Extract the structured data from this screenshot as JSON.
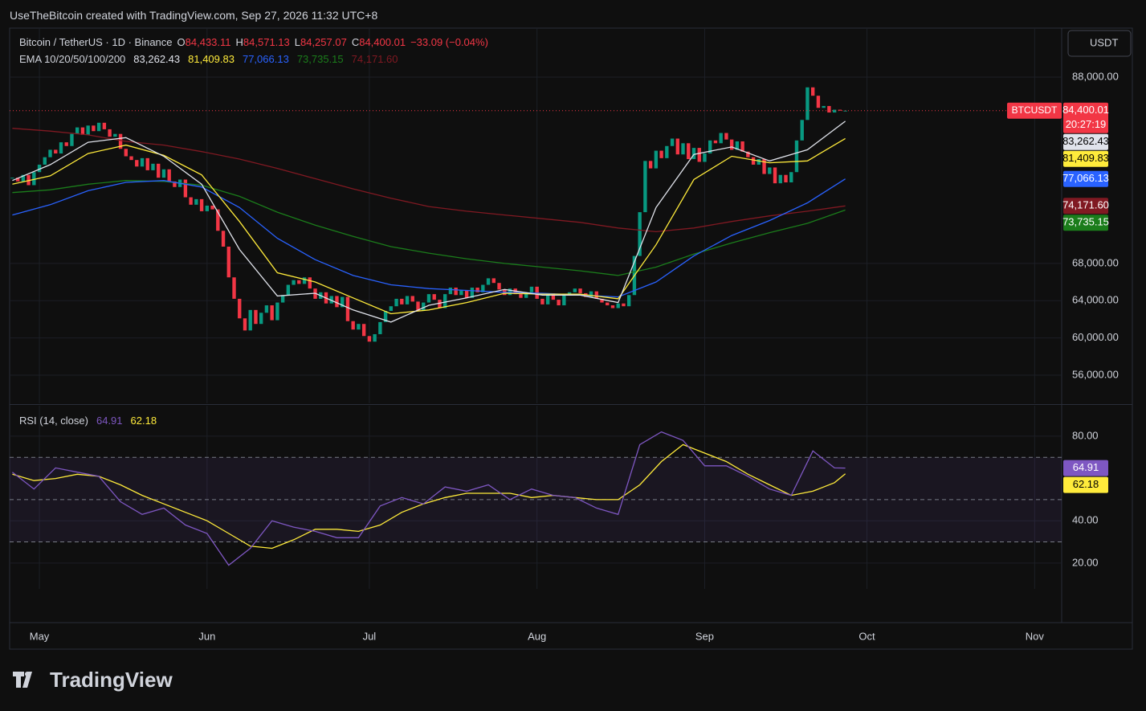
{
  "header": "UseTheBitcoin created with TradingView.com, Sep 27, 2026 11:32 UTC+8",
  "currency": "USDT",
  "watermark": "TradingView",
  "chart_data": [
    {
      "type": "candlestick",
      "title": "Bitcoin / TetherUS · 1D · Binance",
      "ohlc": [
        {
          "key": "O",
          "label": "84,433.11"
        },
        {
          "key": "H",
          "label": "84,571.13"
        },
        {
          "key": "L",
          "label": "84,257.07"
        },
        {
          "key": "C",
          "label": "84,400.01"
        }
      ],
      "change": "−33.09 (−0.04%)",
      "symbol": "BTCUSDT",
      "last_label": "84,400.01",
      "countdown": "20:27:19",
      "up_color": "#089981",
      "down_color": "#f23645",
      "values": [
        77200,
        76800,
        77500,
        76400,
        77800,
        78600,
        79400,
        80200,
        79800,
        81000,
        80600,
        81900,
        82600,
        81800,
        82800,
        82200,
        83100,
        82400,
        81600,
        81900,
        80300,
        79500,
        79100,
        78400,
        79300,
        78000,
        78700,
        77200,
        78100,
        76800,
        76200,
        77000,
        75100,
        74300,
        74900,
        73600,
        74200,
        73800,
        71500,
        69800,
        66500,
        64200,
        62100,
        60800,
        63000,
        61500,
        62700,
        63500,
        61900,
        63800,
        64600,
        65700,
        66200,
        65800,
        66500,
        65300,
        64200,
        64900,
        63700,
        64500,
        63300,
        64400,
        61800,
        60900,
        61500,
        60200,
        59600,
        60400,
        61700,
        62900,
        63400,
        64200,
        63600,
        64500,
        63900,
        62900,
        63800,
        64700,
        64100,
        63200,
        64700,
        65400,
        64600,
        65100,
        64300,
        65400,
        64900,
        65700,
        66400,
        65900,
        65200,
        64600,
        65300,
        64700,
        64300,
        64900,
        65500,
        64200,
        63600,
        64800,
        64100,
        63500,
        64600,
        64900,
        65300,
        64800,
        64400,
        65000,
        64200,
        63800,
        63500,
        63200,
        63700,
        63400,
        64600,
        68800,
        73500,
        79000,
        78200,
        80100,
        79300,
        80600,
        81400,
        79700,
        80900,
        79200,
        80400,
        78900,
        79800,
        81200,
        80900,
        82000,
        81300,
        80200,
        81100,
        80000,
        79400,
        78600,
        79200,
        77600,
        78300,
        76600,
        77500,
        76700,
        77800,
        81200,
        83400,
        86900,
        86000,
        84700,
        84900,
        84200,
        84500,
        84400,
        84400.01
      ],
      "indicator": "EMA 10/20/50/100/200",
      "emas": [
        {
          "color": "#e0e3eb",
          "text_color": "#000000",
          "label": "83,262.43",
          "x": [
            0,
            7,
            14,
            21,
            28,
            35,
            42,
            49,
            56,
            63,
            70,
            77,
            84,
            91,
            98,
            105,
            112,
            119,
            126,
            133,
            140,
            147,
            154
          ],
          "values": [
            76900,
            78600,
            81000,
            81500,
            79500,
            76500,
            69500,
            64500,
            64800,
            63000,
            61700,
            63500,
            64300,
            65200,
            64600,
            64600,
            63800,
            74000,
            79700,
            80500,
            79000,
            80200,
            83262.43
          ]
        },
        {
          "color": "#ffeb3b",
          "text_color": "#000000",
          "label": "81,409.83",
          "x": [
            0,
            7,
            14,
            21,
            28,
            35,
            42,
            49,
            56,
            63,
            70,
            77,
            84,
            91,
            98,
            105,
            112,
            119,
            126,
            133,
            140,
            147,
            154
          ],
          "values": [
            76500,
            77400,
            79800,
            80700,
            79600,
            77500,
            72500,
            67000,
            66000,
            64300,
            62600,
            63000,
            63800,
            64800,
            64700,
            64700,
            64200,
            70000,
            77000,
            79500,
            78800,
            79000,
            81409.83
          ]
        },
        {
          "color": "#2962ff",
          "text_color": "#ffffff",
          "label": "77,066.13",
          "x": [
            0,
            7,
            14,
            21,
            28,
            35,
            42,
            49,
            56,
            63,
            70,
            77,
            84,
            91,
            98,
            105,
            112,
            119,
            126,
            133,
            140,
            147,
            154
          ],
          "values": [
            73200,
            74300,
            75800,
            76700,
            76900,
            76200,
            74000,
            70700,
            68400,
            66700,
            65700,
            65300,
            65100,
            64900,
            64800,
            64600,
            64400,
            66000,
            68800,
            71000,
            72600,
            74500,
            77066.13
          ]
        },
        {
          "color": "#1b7d1b",
          "text_color": "#ffffff",
          "label": "73,735.15",
          "x": [
            0,
            7,
            14,
            21,
            28,
            35,
            42,
            49,
            56,
            63,
            70,
            77,
            84,
            91,
            98,
            105,
            112,
            119,
            126,
            133,
            140,
            147,
            154
          ],
          "values": [
            75600,
            75900,
            76500,
            76900,
            76800,
            76400,
            75200,
            73500,
            72100,
            70900,
            69800,
            69100,
            68500,
            68000,
            67600,
            67200,
            66700,
            67600,
            69000,
            70200,
            71300,
            72300,
            73735.15
          ]
        },
        {
          "color": "#801922",
          "text_color": "#ffffff",
          "label": "74,171.60",
          "x": [
            0,
            7,
            14,
            21,
            28,
            35,
            42,
            49,
            56,
            63,
            70,
            77,
            84,
            91,
            98,
            105,
            112,
            119,
            126,
            133,
            140,
            147,
            154
          ],
          "values": [
            82500,
            82200,
            81800,
            81100,
            80700,
            80000,
            79200,
            78200,
            77100,
            76000,
            75000,
            74100,
            73600,
            73200,
            72800,
            72400,
            71800,
            71400,
            71800,
            72500,
            73100,
            73600,
            74171.6
          ]
        }
      ],
      "xlim": [
        -0.5,
        194
      ],
      "xticks": [
        {
          "value": 5,
          "label": "May"
        },
        {
          "value": 36,
          "label": "Jun"
        },
        {
          "value": 66,
          "label": "Jul"
        },
        {
          "value": 97,
          "label": "Aug"
        },
        {
          "value": 128,
          "label": "Sep"
        },
        {
          "value": 158,
          "label": "Oct"
        },
        {
          "value": 189,
          "label": "Nov"
        }
      ],
      "ylim": [
        52980,
        93260
      ],
      "yticks": [
        {
          "value": 56000,
          "label": "56,000.00"
        },
        {
          "value": 60000,
          "label": "60,000.00"
        },
        {
          "value": 64000,
          "label": "64,000.00"
        },
        {
          "value": 68000,
          "label": "68,000.00"
        },
        {
          "value": 88000,
          "label": "88,000.00"
        }
      ],
      "grid": true
    },
    {
      "type": "line",
      "title": "RSI (14, close)",
      "x": [
        0,
        4,
        8,
        12,
        16,
        20,
        24,
        28,
        32,
        36,
        40,
        44,
        48,
        52,
        56,
        60,
        64,
        68,
        72,
        76,
        80,
        84,
        88,
        92,
        96,
        100,
        104,
        108,
        112,
        116,
        120,
        124,
        128,
        132,
        136,
        140,
        144,
        148,
        152,
        154
      ],
      "series": [
        {
          "color": "#7e57c2",
          "text_color": "#ffffff",
          "label": "64.91",
          "values": [
            63,
            55,
            65,
            63,
            61,
            49,
            43,
            46,
            38,
            34,
            19,
            27,
            40,
            37,
            35,
            32,
            32,
            47,
            51,
            48,
            56,
            54,
            57,
            50,
            55,
            52,
            51,
            46,
            43,
            76,
            82,
            78,
            66,
            66,
            61,
            55,
            52,
            73,
            65,
            64.91
          ]
        },
        {
          "color": "#ffeb3b",
          "text_color": "#000000",
          "label": "62.18",
          "values": [
            62,
            59,
            60,
            62,
            61,
            57,
            52,
            48,
            44,
            40,
            34,
            28,
            27,
            31,
            36,
            36,
            35,
            38,
            44,
            48,
            51,
            53,
            53,
            53,
            51,
            52,
            51,
            50,
            50,
            57,
            68,
            76,
            72,
            68,
            62,
            57,
            52,
            54,
            58,
            62.18
          ]
        }
      ],
      "bands": [
        70,
        50,
        30
      ],
      "xlim": [
        -0.5,
        194
      ],
      "ylim": [
        7.8,
        94.4
      ],
      "yticks": [
        {
          "value": 20,
          "label": "20.00"
        },
        {
          "value": 40,
          "label": "40.00"
        },
        {
          "value": 80,
          "label": "80.00"
        }
      ],
      "grid": true
    }
  ]
}
